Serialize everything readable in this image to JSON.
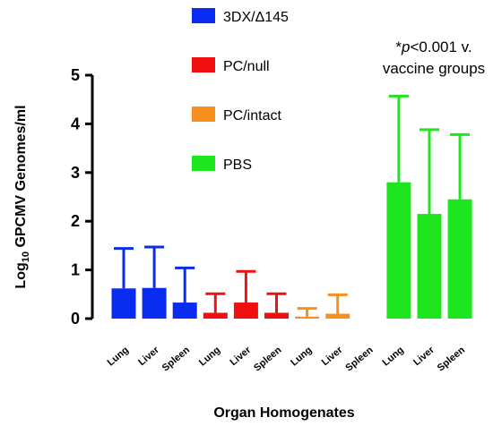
{
  "chart_data": {
    "type": "bar",
    "ylabel_prefix": "Log",
    "ylabel_sub": "10",
    "ylabel_rest": " GPCMV Genomes/ml",
    "xlabel": "Organ Homogenates",
    "ylim": [
      0,
      5
    ],
    "yticks": [
      "0",
      "1",
      "2",
      "3",
      "4",
      "5"
    ],
    "annotation": {
      "line1_prefix": "*",
      "line1_italic": "p",
      "line1_rest": "<0.001 v.",
      "line2": "vaccine groups"
    },
    "series": [
      {
        "name": "3DX/Δ145",
        "color": "#0a2cf0",
        "categories": [
          "Lung",
          "Liver",
          "Spleen"
        ],
        "values": [
          0.62,
          0.63,
          0.33
        ],
        "errors": [
          0.82,
          0.84,
          0.71
        ]
      },
      {
        "name": "PC/null",
        "color": "#f01010",
        "categories": [
          "Lung",
          "Liver",
          "Spleen"
        ],
        "values": [
          0.12,
          0.33,
          0.12
        ],
        "errors": [
          0.39,
          0.64,
          0.39
        ]
      },
      {
        "name": "PC/intact",
        "color": "#f7901e",
        "categories": [
          "Lung",
          "Liver",
          "Spleen"
        ],
        "values": [
          0.04,
          0.1,
          0.0
        ],
        "errors": [
          0.17,
          0.39,
          0.0
        ]
      },
      {
        "name": "PBS",
        "color": "#1ee61e",
        "categories": [
          "Lung",
          "Liver",
          "Spleen"
        ],
        "values": [
          2.8,
          2.15,
          2.45
        ],
        "errors": [
          1.77,
          1.73,
          1.33
        ]
      }
    ]
  }
}
